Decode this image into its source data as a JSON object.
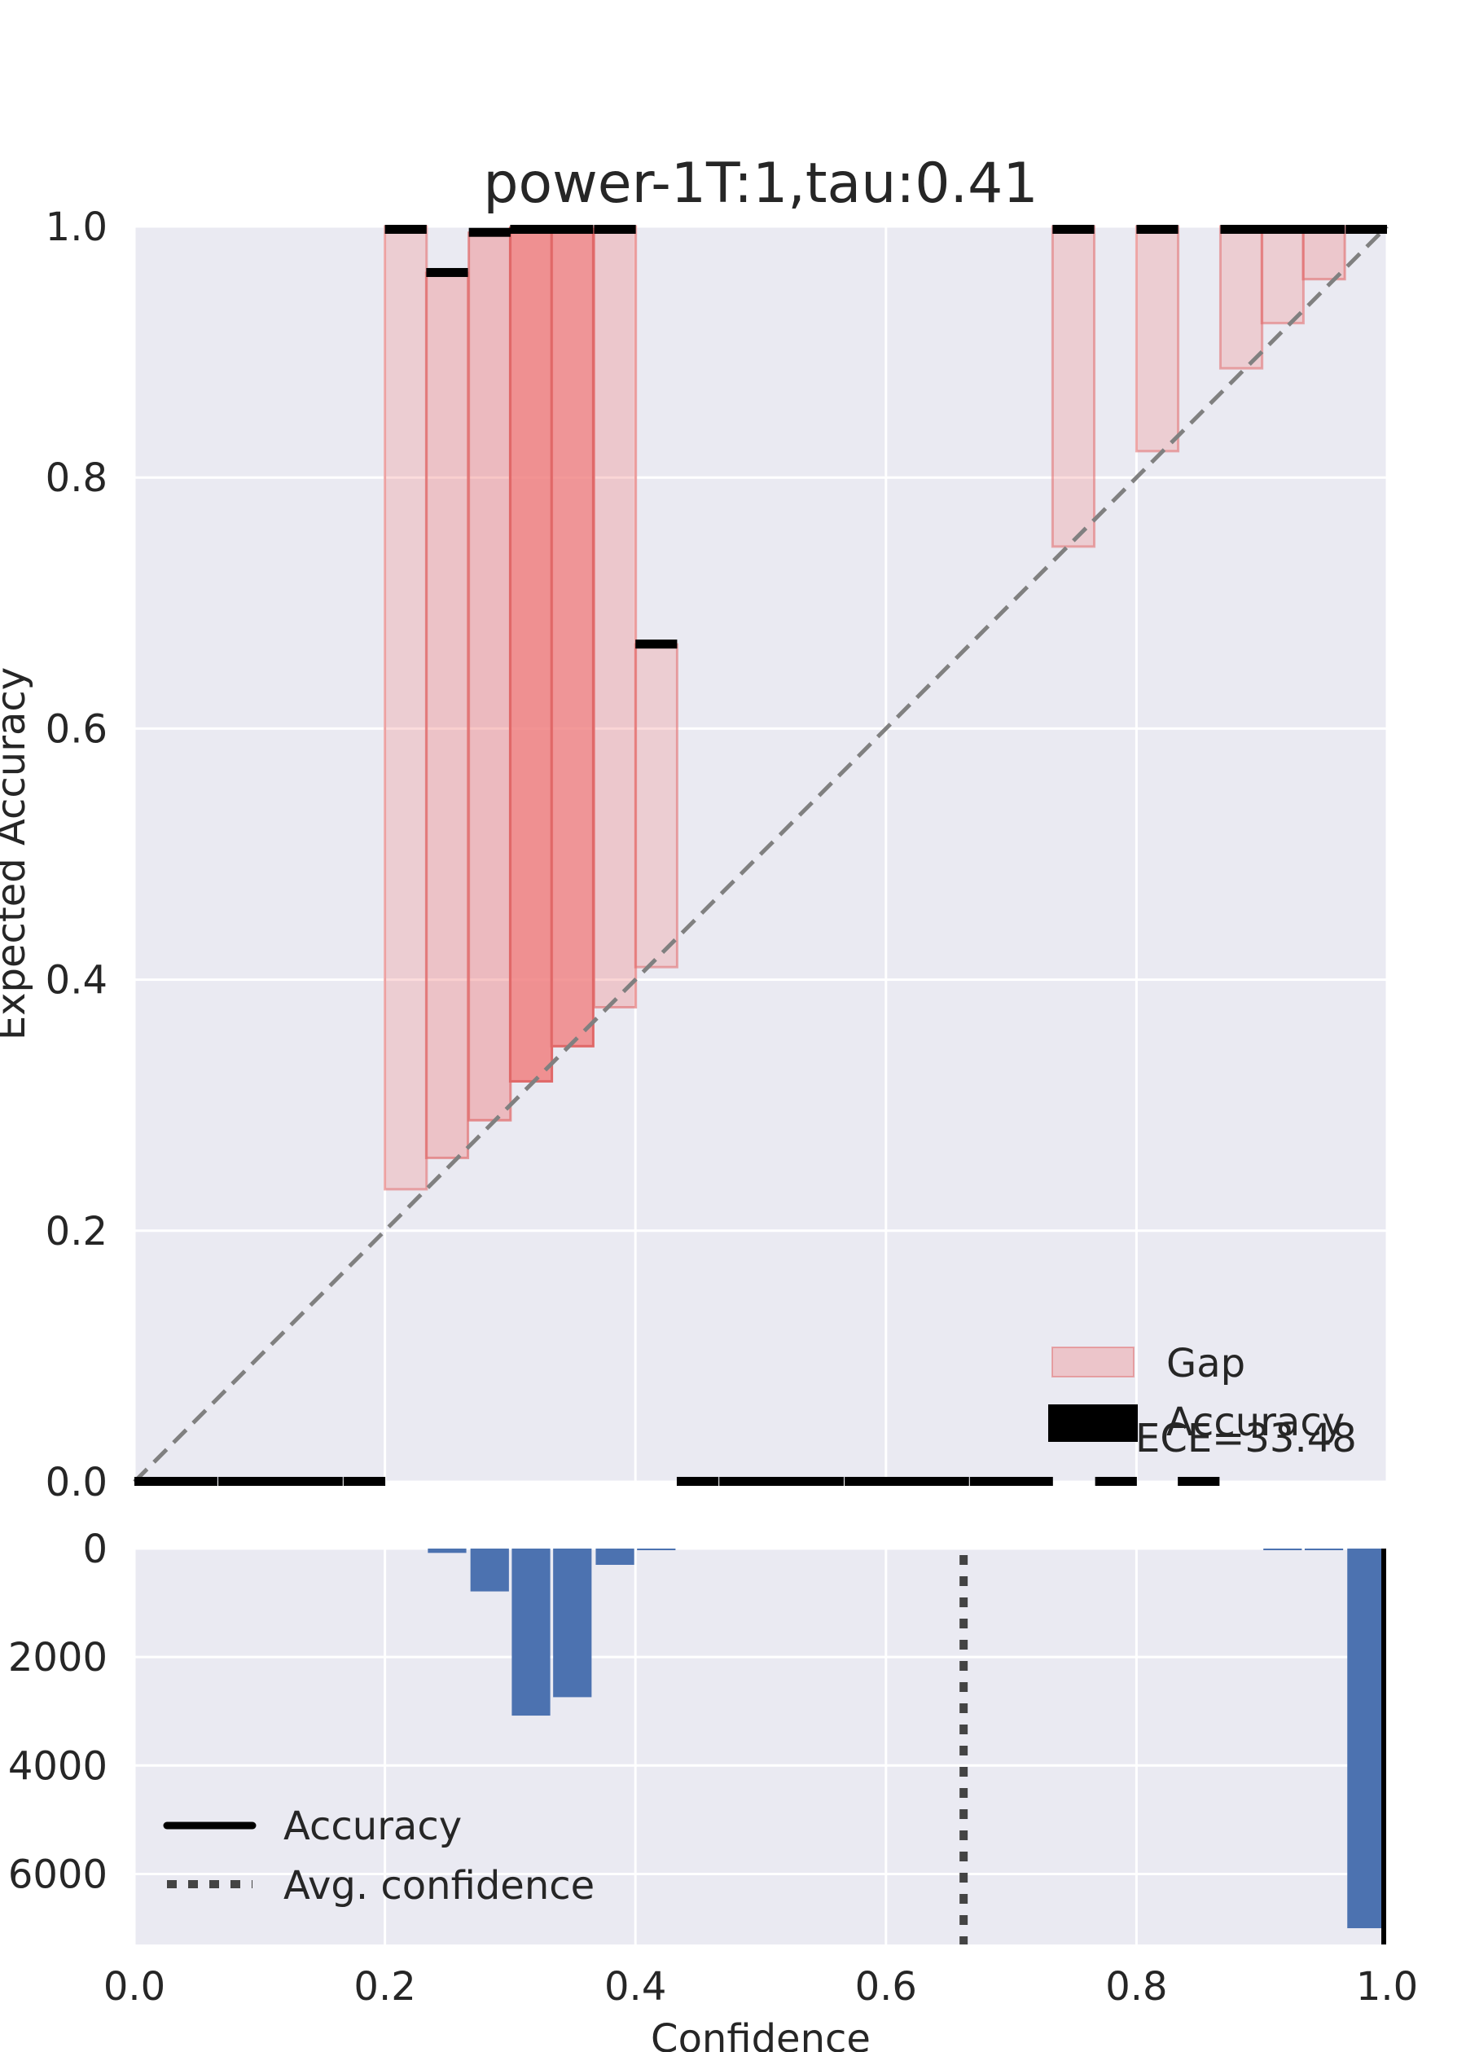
{
  "chart_data": [
    {
      "type": "bar",
      "title": "power-1T:1,tau:0.41",
      "xlabel": "",
      "ylabel": "Expected Accuracy",
      "xlim": [
        0,
        1
      ],
      "ylim": [
        0,
        1
      ],
      "yticks": [
        "0.0",
        "0.2",
        "0.4",
        "0.6",
        "0.8",
        "1.0"
      ],
      "grid": true,
      "bin_width": 0.0333,
      "bins": [
        {
          "x": 0.0,
          "accuracy": 0.0
        },
        {
          "x": 0.033,
          "accuracy": 0.0
        },
        {
          "x": 0.067,
          "accuracy": 0.0
        },
        {
          "x": 0.1,
          "accuracy": 0.0
        },
        {
          "x": 0.133,
          "accuracy": 0.0
        },
        {
          "x": 0.167,
          "accuracy": 0.0
        },
        {
          "x": 0.2,
          "accuracy": 1.0,
          "confidence": 0.233,
          "alpha": 0.28
        },
        {
          "x": 0.233,
          "accuracy": 0.963,
          "confidence": 0.258,
          "alpha": 0.38
        },
        {
          "x": 0.267,
          "accuracy": 0.995,
          "confidence": 0.288,
          "alpha": 0.45
        },
        {
          "x": 0.3,
          "accuracy": 0.999,
          "confidence": 0.319,
          "alpha": 0.85
        },
        {
          "x": 0.333,
          "accuracy": 0.998,
          "confidence": 0.347,
          "alpha": 0.8
        },
        {
          "x": 0.367,
          "accuracy": 1.0,
          "confidence": 0.378,
          "alpha": 0.33
        },
        {
          "x": 0.4,
          "accuracy": 0.667,
          "confidence": 0.41,
          "alpha": 0.28
        },
        {
          "x": 0.433,
          "accuracy": 0.0
        },
        {
          "x": 0.467,
          "accuracy": 0.0
        },
        {
          "x": 0.5,
          "accuracy": 0.0
        },
        {
          "x": 0.533,
          "accuracy": 0.0
        },
        {
          "x": 0.567,
          "accuracy": 0.0
        },
        {
          "x": 0.6,
          "accuracy": 0.0
        },
        {
          "x": 0.633,
          "accuracy": 0.0
        },
        {
          "x": 0.667,
          "accuracy": 0.0
        },
        {
          "x": 0.7,
          "accuracy": 0.0
        },
        {
          "x": 0.733,
          "accuracy": 1.0,
          "confidence": 0.745,
          "alpha": 0.28
        },
        {
          "x": 0.767,
          "accuracy": 0.0
        },
        {
          "x": 0.8,
          "accuracy": 1.0,
          "confidence": 0.821,
          "alpha": 0.28
        },
        {
          "x": 0.833,
          "accuracy": 0.0
        },
        {
          "x": 0.867,
          "accuracy": 1.0,
          "confidence": 0.887,
          "alpha": 0.28
        },
        {
          "x": 0.9,
          "accuracy": 1.0,
          "confidence": 0.923,
          "alpha": 0.28
        },
        {
          "x": 0.933,
          "accuracy": 1.0,
          "confidence": 0.958,
          "alpha": 0.33
        },
        {
          "x": 0.967,
          "accuracy": 1.0,
          "confidence": 1.0,
          "alpha": 0.28
        }
      ],
      "legend": {
        "position": "lower right",
        "entries": [
          "Gap",
          "Accuracy"
        ]
      },
      "annotation": "ECE=33.48",
      "colors": {
        "gap": "#f08080",
        "gap_edge": "#e06868",
        "accuracy": "#000000",
        "diagonal": "#808080"
      }
    },
    {
      "type": "bar",
      "title": "",
      "xlabel": "Confidence",
      "ylabel": "",
      "xlim": [
        0,
        1
      ],
      "ylim": [
        0,
        7300
      ],
      "xticks": [
        "0.0",
        "0.2",
        "0.4",
        "0.6",
        "0.8",
        "1.0"
      ],
      "yticks": [
        "0",
        "2000",
        "4000",
        "6000"
      ],
      "y_inverted": true,
      "grid": true,
      "bin_width": 0.0333,
      "bins": [
        {
          "x": 0.233,
          "count": 80
        },
        {
          "x": 0.267,
          "count": 790
        },
        {
          "x": 0.3,
          "count": 3080
        },
        {
          "x": 0.333,
          "count": 2740
        },
        {
          "x": 0.367,
          "count": 300
        },
        {
          "x": 0.4,
          "count": 12
        },
        {
          "x": 0.9,
          "count": 10
        },
        {
          "x": 0.933,
          "count": 10
        },
        {
          "x": 0.967,
          "count": 7000
        }
      ],
      "accuracy_line_x": 1.0,
      "avg_confidence_x": 0.662,
      "legend": {
        "position": "lower left",
        "entries": [
          "Accuracy",
          "Avg. confidence"
        ]
      },
      "colors": {
        "bar": "#4c72b0",
        "accuracy": "#000000",
        "avg_confidence": "#444444"
      }
    }
  ]
}
